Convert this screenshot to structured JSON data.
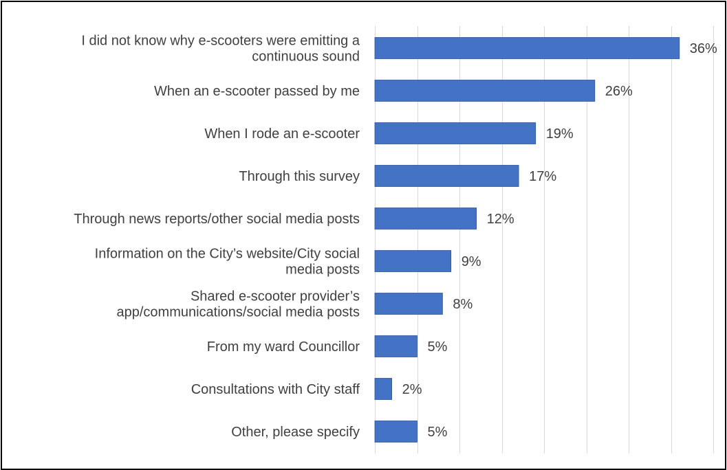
{
  "chart_data": {
    "type": "bar",
    "orientation": "horizontal",
    "categories": [
      [
        "I did not know why e-scooters were emitting a",
        "continuous sound"
      ],
      [
        "When an e-scooter passed by me"
      ],
      [
        "When I rode an e-scooter"
      ],
      [
        "Through this survey"
      ],
      [
        "Through news reports/other social media posts"
      ],
      [
        "Information on the City’s website/City social",
        "media posts"
      ],
      [
        "Shared e-scooter provider’s",
        "app/communications/social media posts"
      ],
      [
        "From my ward Councillor"
      ],
      [
        "Consultations with City staff"
      ],
      [
        "Other, please specify"
      ]
    ],
    "values": [
      36,
      26,
      19,
      17,
      12,
      9,
      8,
      5,
      2,
      5
    ],
    "value_labels": [
      "36%",
      "26%",
      "19%",
      "17%",
      "12%",
      "9%",
      "8%",
      "5%",
      "2%",
      "5%"
    ],
    "xlim": [
      0,
      40
    ],
    "grid": "vertical",
    "legend": "none",
    "colors": {
      "bar": "#4472C4",
      "bar_edge": "#2F5597",
      "grid": "#D9D9D9",
      "text": "#404040"
    }
  }
}
